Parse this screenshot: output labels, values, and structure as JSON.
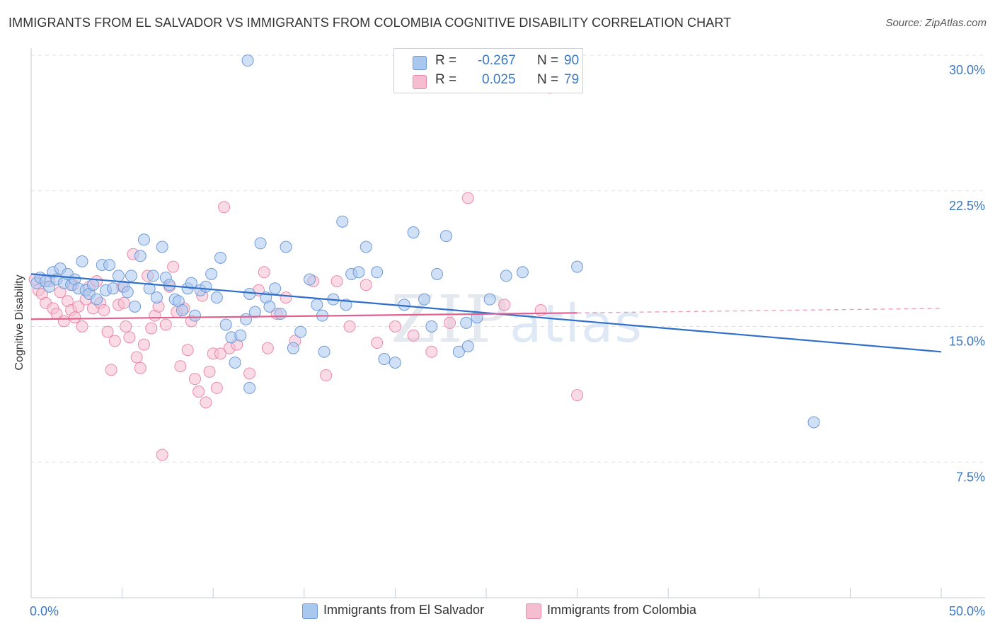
{
  "title": "IMMIGRANTS FROM EL SALVADOR VS IMMIGRANTS FROM COLOMBIA COGNITIVE DISABILITY CORRELATION CHART",
  "source": "Source: ZipAtlas.com",
  "watermark": {
    "zip": "ZIP",
    "atlas": "atlas"
  },
  "colors": {
    "blue_fill": "#a9c8f0",
    "blue_stroke": "#6f9ad6",
    "blue_line": "#2f6fcc",
    "pink_fill": "#f6bdd0",
    "pink_stroke": "#e98aab",
    "pink_line": "#e0608e",
    "axis_text": "#3b78c2",
    "grid": "#dde2e8"
  },
  "stats": {
    "row1": {
      "r_label": "R =",
      "r_value": "-0.267",
      "n_label": "N =",
      "n_value": "90"
    },
    "row2": {
      "r_label": "R =",
      "r_value": "0.025",
      "n_label": "N =",
      "n_value": "79"
    }
  },
  "legend": {
    "series1": "Immigrants from El Salvador",
    "series2": "Immigrants from Colombia"
  },
  "chart_data": {
    "type": "scatter",
    "title": "IMMIGRANTS FROM EL SALVADOR VS IMMIGRANTS FROM COLOMBIA COGNITIVE DISABILITY CORRELATION CHART",
    "xlabel": "",
    "ylabel": "Cognitive Disability",
    "xlim": [
      0,
      50
    ],
    "ylim": [
      0,
      30
    ],
    "x_tick_labels": [
      "0.0%",
      "50.0%"
    ],
    "y_ticks": [
      7.5,
      15.0,
      22.5,
      30.0
    ],
    "y_tick_labels": [
      "7.5%",
      "15.0%",
      "22.5%",
      "30.0%"
    ],
    "grid": "horizontal dashed",
    "legend_position": "bottom-center",
    "series": [
      {
        "name": "Immigrants from El Salvador",
        "trend": {
          "x": [
            0,
            50
          ],
          "y": [
            17.9,
            13.6
          ]
        },
        "points": [
          [
            0.3,
            17.4
          ],
          [
            0.5,
            17.7
          ],
          [
            0.8,
            17.5
          ],
          [
            1.0,
            17.2
          ],
          [
            1.2,
            18.0
          ],
          [
            1.4,
            17.6
          ],
          [
            1.6,
            18.2
          ],
          [
            1.8,
            17.4
          ],
          [
            2.0,
            17.9
          ],
          [
            2.2,
            17.3
          ],
          [
            2.4,
            17.6
          ],
          [
            2.6,
            17.1
          ],
          [
            2.8,
            18.6
          ],
          [
            3.0,
            17.0
          ],
          [
            3.2,
            16.8
          ],
          [
            3.4,
            17.3
          ],
          [
            3.6,
            16.5
          ],
          [
            3.9,
            18.4
          ],
          [
            4.1,
            17.0
          ],
          [
            4.3,
            18.4
          ],
          [
            4.5,
            17.1
          ],
          [
            4.8,
            17.8
          ],
          [
            5.1,
            17.2
          ],
          [
            5.3,
            16.9
          ],
          [
            5.5,
            17.8
          ],
          [
            5.7,
            16.1
          ],
          [
            6.0,
            18.9
          ],
          [
            6.2,
            19.8
          ],
          [
            6.5,
            17.1
          ],
          [
            6.7,
            17.8
          ],
          [
            6.9,
            16.6
          ],
          [
            7.2,
            19.4
          ],
          [
            7.4,
            17.7
          ],
          [
            7.6,
            17.3
          ],
          [
            7.9,
            16.5
          ],
          [
            8.1,
            16.4
          ],
          [
            8.3,
            15.9
          ],
          [
            8.6,
            17.1
          ],
          [
            8.8,
            17.4
          ],
          [
            9.0,
            15.6
          ],
          [
            9.3,
            17.0
          ],
          [
            9.6,
            17.2
          ],
          [
            9.9,
            17.9
          ],
          [
            10.2,
            16.6
          ],
          [
            10.4,
            18.8
          ],
          [
            10.7,
            15.1
          ],
          [
            11.0,
            14.4
          ],
          [
            11.2,
            13.0
          ],
          [
            11.5,
            14.5
          ],
          [
            11.8,
            15.4
          ],
          [
            12.0,
            16.8
          ],
          [
            12.3,
            15.8
          ],
          [
            12.6,
            19.6
          ],
          [
            12.9,
            16.6
          ],
          [
            13.1,
            16.1
          ],
          [
            13.4,
            17.1
          ],
          [
            13.7,
            15.7
          ],
          [
            14.0,
            19.4
          ],
          [
            14.4,
            13.8
          ],
          [
            14.8,
            14.7
          ],
          [
            15.3,
            17.6
          ],
          [
            15.7,
            16.2
          ],
          [
            16.1,
            13.6
          ],
          [
            16.6,
            16.5
          ],
          [
            17.1,
            20.8
          ],
          [
            17.6,
            17.9
          ],
          [
            18.0,
            18.0
          ],
          [
            18.4,
            19.4
          ],
          [
            19.0,
            18.0
          ],
          [
            19.4,
            13.2
          ],
          [
            20.0,
            13.0
          ],
          [
            20.5,
            16.2
          ],
          [
            21.0,
            20.2
          ],
          [
            21.6,
            16.5
          ],
          [
            22.3,
            17.9
          ],
          [
            22.8,
            20.0
          ],
          [
            23.5,
            13.6
          ],
          [
            24.0,
            13.9
          ],
          [
            24.5,
            15.5
          ],
          [
            25.2,
            16.5
          ],
          [
            11.9,
            29.7
          ],
          [
            16.0,
            15.6
          ],
          [
            22.0,
            15.0
          ],
          [
            23.9,
            15.2
          ],
          [
            12.0,
            11.6
          ],
          [
            17.3,
            16.2
          ],
          [
            26.1,
            17.8
          ],
          [
            27.0,
            18.0
          ],
          [
            30.0,
            18.3
          ],
          [
            43.0,
            9.7
          ]
        ]
      },
      {
        "name": "Immigrants from Colombia",
        "trend": {
          "x": [
            0,
            30
          ],
          "y": [
            15.4,
            15.75
          ]
        },
        "trend_extension": {
          "x": [
            30,
            50
          ],
          "y": [
            15.75,
            16.0
          ]
        },
        "points": [
          [
            0.2,
            17.6
          ],
          [
            0.4,
            17.0
          ],
          [
            0.6,
            16.8
          ],
          [
            0.8,
            16.3
          ],
          [
            1.0,
            17.5
          ],
          [
            1.2,
            16.0
          ],
          [
            1.4,
            15.7
          ],
          [
            1.6,
            16.9
          ],
          [
            1.8,
            15.3
          ],
          [
            2.0,
            16.4
          ],
          [
            2.2,
            15.9
          ],
          [
            2.4,
            15.5
          ],
          [
            2.6,
            16.1
          ],
          [
            2.8,
            15.0
          ],
          [
            3.0,
            16.5
          ],
          [
            3.2,
            17.2
          ],
          [
            3.4,
            16.0
          ],
          [
            3.6,
            17.5
          ],
          [
            3.8,
            16.3
          ],
          [
            4.0,
            15.9
          ],
          [
            4.2,
            14.7
          ],
          [
            4.4,
            12.6
          ],
          [
            4.6,
            14.2
          ],
          [
            4.8,
            16.2
          ],
          [
            5.0,
            17.2
          ],
          [
            5.2,
            15.0
          ],
          [
            5.4,
            14.4
          ],
          [
            5.6,
            19.0
          ],
          [
            5.8,
            13.3
          ],
          [
            6.0,
            12.7
          ],
          [
            6.2,
            14.0
          ],
          [
            6.4,
            17.8
          ],
          [
            6.6,
            14.9
          ],
          [
            6.8,
            15.6
          ],
          [
            7.0,
            16.1
          ],
          [
            7.2,
            7.9
          ],
          [
            7.4,
            15.1
          ],
          [
            7.6,
            17.2
          ],
          [
            7.8,
            18.3
          ],
          [
            8.0,
            15.8
          ],
          [
            8.2,
            12.8
          ],
          [
            8.4,
            16.0
          ],
          [
            8.6,
            13.7
          ],
          [
            8.8,
            15.3
          ],
          [
            9.0,
            12.1
          ],
          [
            9.2,
            11.4
          ],
          [
            9.4,
            16.7
          ],
          [
            9.6,
            10.8
          ],
          [
            9.8,
            12.5
          ],
          [
            10.0,
            13.5
          ],
          [
            10.2,
            11.6
          ],
          [
            10.4,
            13.5
          ],
          [
            10.6,
            21.6
          ],
          [
            10.9,
            13.8
          ],
          [
            11.3,
            14.0
          ],
          [
            12.0,
            12.4
          ],
          [
            12.5,
            17.0
          ],
          [
            13.0,
            13.8
          ],
          [
            13.5,
            15.7
          ],
          [
            14.0,
            16.6
          ],
          [
            14.5,
            14.2
          ],
          [
            15.5,
            17.5
          ],
          [
            16.2,
            12.3
          ],
          [
            16.8,
            17.5
          ],
          [
            17.5,
            15.0
          ],
          [
            18.4,
            17.3
          ],
          [
            19.0,
            14.1
          ],
          [
            20.0,
            15.0
          ],
          [
            21.0,
            14.5
          ],
          [
            22.0,
            13.6
          ],
          [
            23.0,
            15.2
          ],
          [
            24.0,
            22.1
          ],
          [
            26.0,
            16.2
          ],
          [
            28.0,
            15.9
          ],
          [
            28.5,
            28.2
          ],
          [
            30.0,
            11.2
          ],
          [
            2.3,
            17.3
          ],
          [
            5.1,
            16.3
          ],
          [
            12.8,
            18.0
          ]
        ]
      }
    ]
  }
}
